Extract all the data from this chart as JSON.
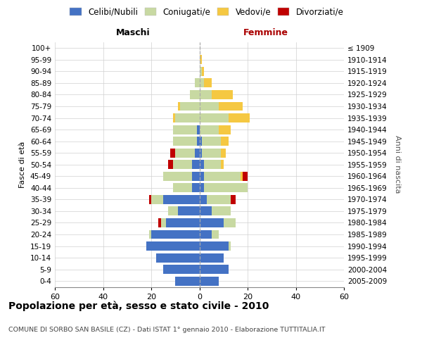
{
  "age_groups_bottom_to_top": [
    "0-4",
    "5-9",
    "10-14",
    "15-19",
    "20-24",
    "25-29",
    "30-34",
    "35-39",
    "40-44",
    "45-49",
    "50-54",
    "55-59",
    "60-64",
    "65-69",
    "70-74",
    "75-79",
    "80-84",
    "85-89",
    "90-94",
    "95-99",
    "100+"
  ],
  "birth_years_bottom_to_top": [
    "2005-2009",
    "2000-2004",
    "1995-1999",
    "1990-1994",
    "1985-1989",
    "1980-1984",
    "1975-1979",
    "1970-1974",
    "1965-1969",
    "1960-1964",
    "1955-1959",
    "1950-1954",
    "1945-1949",
    "1940-1944",
    "1935-1939",
    "1930-1934",
    "1925-1929",
    "1920-1924",
    "1915-1919",
    "1910-1914",
    "≤ 1909"
  ],
  "males": {
    "celibi": [
      10,
      15,
      18,
      22,
      20,
      14,
      9,
      15,
      3,
      3,
      3,
      2,
      1,
      1,
      0,
      0,
      0,
      0,
      0,
      0,
      0
    ],
    "coniugati": [
      0,
      0,
      0,
      0,
      1,
      2,
      4,
      5,
      8,
      12,
      8,
      8,
      10,
      10,
      10,
      8,
      4,
      2,
      0,
      0,
      0
    ],
    "vedovi": [
      0,
      0,
      0,
      0,
      0,
      0,
      0,
      0,
      0,
      0,
      0,
      0,
      0,
      0,
      1,
      1,
      0,
      0,
      0,
      0,
      0
    ],
    "divorziati": [
      0,
      0,
      0,
      0,
      0,
      1,
      0,
      1,
      0,
      0,
      2,
      2,
      0,
      0,
      0,
      0,
      0,
      0,
      0,
      0,
      0
    ]
  },
  "females": {
    "nubili": [
      8,
      12,
      10,
      12,
      5,
      10,
      5,
      3,
      2,
      2,
      2,
      1,
      1,
      0,
      0,
      0,
      0,
      0,
      0,
      0,
      0
    ],
    "coniugate": [
      0,
      0,
      0,
      1,
      3,
      5,
      8,
      10,
      18,
      15,
      7,
      8,
      8,
      8,
      12,
      8,
      5,
      2,
      1,
      0,
      0
    ],
    "vedove": [
      0,
      0,
      0,
      0,
      0,
      0,
      0,
      0,
      0,
      1,
      1,
      2,
      3,
      5,
      9,
      10,
      9,
      3,
      1,
      1,
      0
    ],
    "divorziate": [
      0,
      0,
      0,
      0,
      0,
      0,
      0,
      2,
      0,
      2,
      0,
      0,
      0,
      0,
      0,
      0,
      0,
      0,
      0,
      0,
      0
    ]
  },
  "colors": {
    "celibi": "#4472C4",
    "coniugati": "#c8d9a2",
    "vedovi": "#F5C842",
    "divorziati": "#C00000"
  },
  "xlim": 60,
  "title": "Popolazione per età, sesso e stato civile - 2010",
  "subtitle": "COMUNE DI SORBO SAN BASILE (CZ) - Dati ISTAT 1° gennaio 2010 - Elaborazione TUTTITALIA.IT",
  "ylabel_left": "Fasce di età",
  "ylabel_right": "Anni di nascita",
  "header_left": "Maschi",
  "header_right": "Femmine",
  "legend_labels": [
    "Celibi/Nubili",
    "Coniugati/e",
    "Vedovi/e",
    "Divorziati/e"
  ]
}
